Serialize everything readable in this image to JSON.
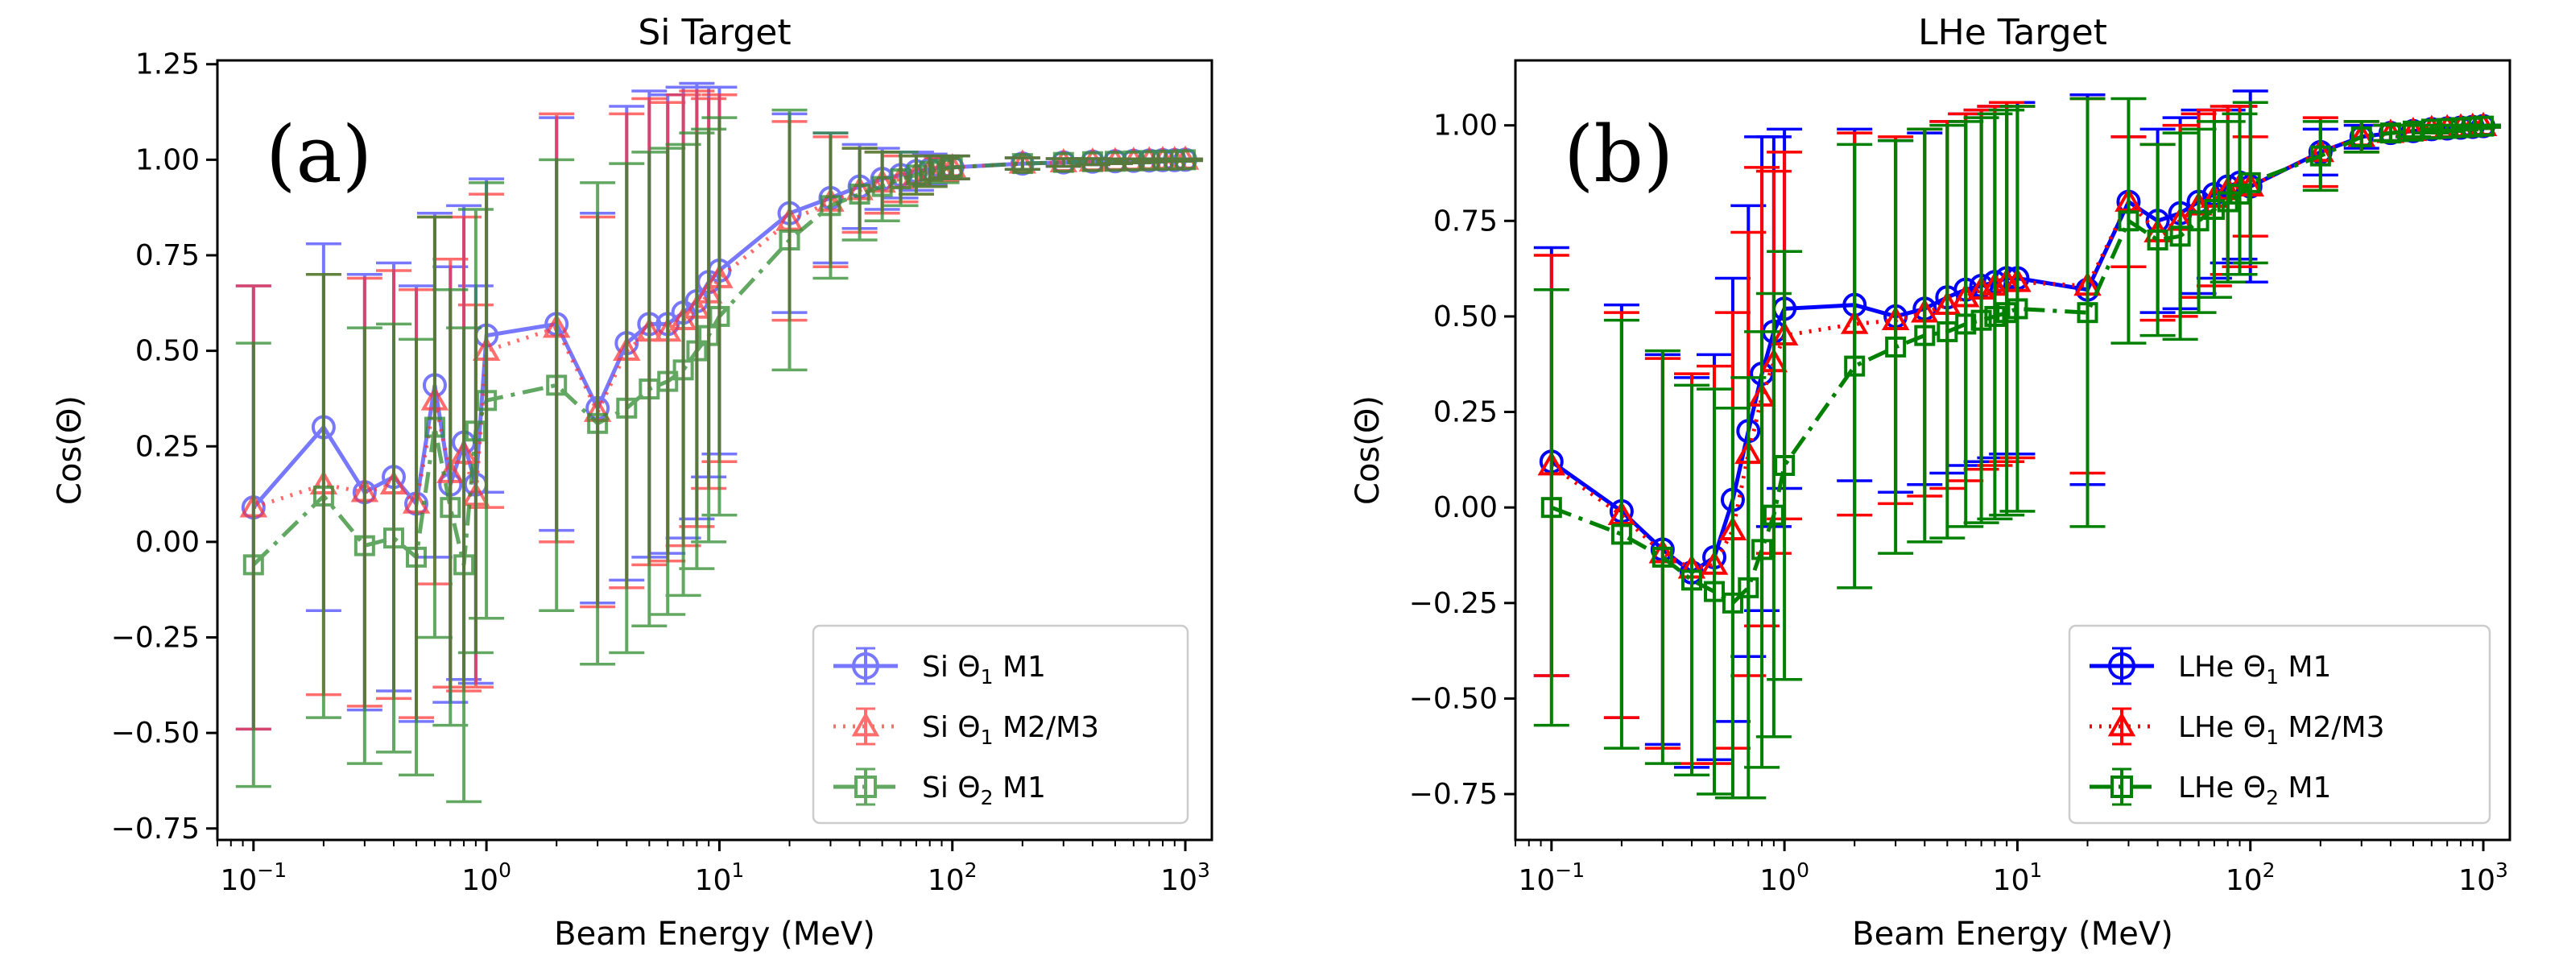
{
  "chart_data": [
    {
      "type": "line",
      "panel_label": "(a)",
      "title": "Si Target",
      "xlabel": "Beam Energy (MeV)",
      "ylabel": "Cos(Θ)",
      "xscale": "log",
      "xlim": [
        0.07,
        1300
      ],
      "ylim": [
        -0.78,
        1.26
      ],
      "xticks": [
        0.1,
        1,
        10,
        100,
        1000
      ],
      "xtick_labels": [
        [
          "10",
          "−1"
        ],
        [
          "10",
          "0"
        ],
        [
          "10",
          "1"
        ],
        [
          "10",
          "2"
        ],
        [
          "10",
          "3"
        ]
      ],
      "yticks": [
        -0.75,
        -0.5,
        -0.25,
        0.0,
        0.25,
        0.5,
        0.75,
        1.0,
        1.25
      ],
      "ytick_labels": [
        "−0.75",
        "−0.50",
        "−0.25",
        "0.00",
        "0.25",
        "0.50",
        "0.75",
        "1.00",
        "1.25"
      ],
      "legend_position": "lower-right",
      "x": [
        0.1,
        0.2,
        0.3,
        0.4,
        0.5,
        0.6,
        0.7,
        0.8,
        0.9,
        1,
        2,
        3,
        4,
        5,
        6,
        7,
        8,
        9,
        10,
        20,
        30,
        40,
        50,
        60,
        70,
        80,
        90,
        100,
        200,
        300,
        400,
        500,
        600,
        700,
        800,
        900,
        1000
      ],
      "series": [
        {
          "name": "Si Θ₁ M1",
          "label_parts": [
            "Si Θ",
            "1",
            " M1"
          ],
          "color": "#4040ff",
          "opacity": 0.7,
          "linestyle": "solid",
          "marker": "circle",
          "y": [
            0.09,
            0.3,
            0.13,
            0.17,
            0.1,
            0.41,
            0.15,
            0.26,
            0.15,
            0.54,
            0.57,
            0.35,
            0.52,
            0.57,
            0.57,
            0.6,
            0.63,
            0.68,
            0.71,
            0.86,
            0.9,
            0.93,
            0.95,
            0.96,
            0.97,
            0.975,
            0.98,
            0.98,
            0.99,
            0.993,
            0.995,
            0.996,
            0.997,
            0.998,
            0.999,
            0.999,
            1.0
          ],
          "err": [
            0.58,
            0.48,
            0.57,
            0.56,
            0.57,
            0.45,
            0.57,
            0.62,
            0.52,
            0.41,
            0.54,
            0.51,
            0.62,
            0.61,
            0.6,
            0.59,
            0.57,
            0.51,
            0.48,
            0.26,
            0.17,
            0.11,
            0.08,
            0.06,
            0.05,
            0.04,
            0.03,
            0.03,
            0.015,
            0.01,
            0.008,
            0.006,
            0.005,
            0.004,
            0.003,
            0.003,
            0.002
          ]
        },
        {
          "name": "Si Θ₁ M2/M3",
          "label_parts": [
            "Si Θ",
            "1",
            " M2/M3"
          ],
          "color": "#ff3030",
          "opacity": 0.7,
          "linestyle": "dotted",
          "marker": "triangle",
          "y": [
            0.09,
            0.15,
            0.13,
            0.15,
            0.1,
            0.37,
            0.18,
            0.23,
            0.12,
            0.5,
            0.56,
            0.34,
            0.5,
            0.55,
            0.55,
            0.58,
            0.61,
            0.65,
            0.69,
            0.84,
            0.89,
            0.92,
            0.94,
            0.95,
            0.96,
            0.97,
            0.975,
            0.98,
            0.99,
            0.993,
            0.995,
            0.996,
            0.997,
            0.998,
            0.999,
            0.999,
            1.0
          ],
          "err": [
            0.58,
            0.55,
            0.56,
            0.56,
            0.56,
            0.48,
            0.56,
            0.62,
            0.5,
            0.41,
            0.56,
            0.51,
            0.62,
            0.61,
            0.6,
            0.59,
            0.57,
            0.51,
            0.48,
            0.26,
            0.17,
            0.11,
            0.08,
            0.06,
            0.05,
            0.04,
            0.03,
            0.03,
            0.015,
            0.01,
            0.008,
            0.006,
            0.005,
            0.004,
            0.003,
            0.003,
            0.002
          ]
        },
        {
          "name": "Si Θ₂ M1",
          "label_parts": [
            "Si Θ",
            "2",
            " M1"
          ],
          "color": "#2e8b2e",
          "opacity": 0.75,
          "linestyle": "dashdot",
          "marker": "square",
          "y": [
            -0.06,
            0.12,
            -0.01,
            0.01,
            -0.04,
            0.3,
            0.09,
            -0.06,
            0.29,
            0.37,
            0.41,
            0.31,
            0.35,
            0.4,
            0.42,
            0.45,
            0.5,
            0.54,
            0.59,
            0.79,
            0.88,
            0.91,
            0.93,
            0.95,
            0.96,
            0.97,
            0.975,
            0.98,
            0.99,
            0.993,
            0.995,
            0.996,
            0.997,
            0.998,
            0.999,
            0.999,
            1.0
          ],
          "err": [
            0.58,
            0.58,
            0.57,
            0.56,
            0.57,
            0.55,
            0.57,
            0.62,
            0.58,
            0.57,
            0.59,
            0.63,
            0.64,
            0.62,
            0.61,
            0.59,
            0.57,
            0.54,
            0.52,
            0.34,
            0.19,
            0.12,
            0.09,
            0.07,
            0.05,
            0.04,
            0.035,
            0.03,
            0.015,
            0.01,
            0.008,
            0.006,
            0.005,
            0.004,
            0.003,
            0.003,
            0.002
          ]
        }
      ]
    },
    {
      "type": "line",
      "panel_label": "(b)",
      "title": "LHe Target",
      "xlabel": "Beam Energy (MeV)",
      "ylabel": "Cos(Θ)",
      "xscale": "log",
      "xlim": [
        0.07,
        1300
      ],
      "ylim": [
        -0.87,
        1.17
      ],
      "xticks": [
        0.1,
        1,
        10,
        100,
        1000
      ],
      "xtick_labels": [
        [
          "10",
          "−1"
        ],
        [
          "10",
          "0"
        ],
        [
          "10",
          "1"
        ],
        [
          "10",
          "2"
        ],
        [
          "10",
          "3"
        ]
      ],
      "yticks": [
        -0.75,
        -0.5,
        -0.25,
        0.0,
        0.25,
        0.5,
        0.75,
        1.0
      ],
      "ytick_labels": [
        "−0.75",
        "−0.50",
        "−0.25",
        "0.00",
        "0.25",
        "0.50",
        "0.75",
        "1.00"
      ],
      "legend_position": "lower-right",
      "x": [
        0.1,
        0.2,
        0.3,
        0.4,
        0.5,
        0.6,
        0.7,
        0.8,
        0.9,
        1,
        2,
        3,
        4,
        5,
        6,
        7,
        8,
        9,
        10,
        20,
        30,
        40,
        50,
        60,
        70,
        80,
        90,
        100,
        200,
        300,
        400,
        500,
        600,
        700,
        800,
        900,
        1000
      ],
      "series": [
        {
          "name": "LHe Θ₁ M1",
          "label_parts": [
            "LHe Θ",
            "1",
            " M1"
          ],
          "color": "#0000ff",
          "opacity": 1,
          "linestyle": "solid",
          "marker": "circle",
          "y": [
            0.12,
            -0.01,
            -0.11,
            -0.17,
            -0.13,
            0.02,
            0.2,
            0.35,
            0.46,
            0.52,
            0.53,
            0.5,
            0.52,
            0.55,
            0.57,
            0.58,
            0.59,
            0.6,
            0.6,
            0.57,
            0.8,
            0.75,
            0.77,
            0.8,
            0.82,
            0.84,
            0.85,
            0.84,
            0.93,
            0.97,
            0.98,
            0.985,
            0.99,
            0.992,
            0.994,
            0.996,
            0.998
          ],
          "err": [
            0.56,
            0.54,
            0.51,
            0.51,
            0.53,
            0.58,
            0.59,
            0.62,
            0.51,
            0.47,
            0.46,
            0.46,
            0.46,
            0.46,
            0.46,
            0.46,
            0.46,
            0.46,
            0.46,
            0.51,
            0.17,
            0.24,
            0.25,
            0.24,
            0.22,
            0.2,
            0.2,
            0.25,
            0.06,
            0.03,
            0.02,
            0.015,
            0.01,
            0.008,
            0.006,
            0.004,
            0.003
          ]
        },
        {
          "name": "LHe Θ₁ M2/M3",
          "label_parts": [
            "LHe Θ",
            "1",
            " M2/M3"
          ],
          "color": "#ff0000",
          "opacity": 1,
          "linestyle": "dotted",
          "marker": "triangle",
          "y": [
            0.11,
            -0.02,
            -0.12,
            -0.16,
            -0.15,
            -0.06,
            0.14,
            0.29,
            0.38,
            0.45,
            0.48,
            0.49,
            0.51,
            0.53,
            0.55,
            0.57,
            0.58,
            0.59,
            0.59,
            0.58,
            0.8,
            0.72,
            0.75,
            0.79,
            0.81,
            0.83,
            0.84,
            0.84,
            0.93,
            0.97,
            0.98,
            0.985,
            0.99,
            0.992,
            0.994,
            0.996,
            0.998
          ],
          "err": [
            0.55,
            0.53,
            0.51,
            0.51,
            0.52,
            0.57,
            0.58,
            0.6,
            0.5,
            0.48,
            0.5,
            0.48,
            0.48,
            0.48,
            0.48,
            0.47,
            0.47,
            0.47,
            0.46,
            0.49,
            0.17,
            0.23,
            0.25,
            0.24,
            0.23,
            0.22,
            0.21,
            0.13,
            0.09,
            0.04,
            0.02,
            0.015,
            0.01,
            0.008,
            0.006,
            0.004,
            0.003
          ]
        },
        {
          "name": "LHe Θ₂ M1",
          "label_parts": [
            "LHe Θ",
            "2",
            " M1"
          ],
          "color": "#008000",
          "opacity": 1,
          "linestyle": "dashdot",
          "marker": "square",
          "y": [
            0.0,
            -0.07,
            -0.13,
            -0.19,
            -0.22,
            -0.25,
            -0.21,
            -0.11,
            -0.02,
            0.11,
            0.37,
            0.42,
            0.45,
            0.46,
            0.48,
            0.49,
            0.5,
            0.51,
            0.52,
            0.51,
            0.75,
            0.7,
            0.71,
            0.75,
            0.78,
            0.8,
            0.82,
            0.85,
            0.92,
            0.97,
            0.98,
            0.985,
            0.99,
            0.992,
            0.994,
            0.996,
            0.998
          ],
          "err": [
            0.57,
            0.56,
            0.54,
            0.51,
            0.53,
            0.51,
            0.55,
            0.57,
            0.58,
            0.56,
            0.58,
            0.54,
            0.54,
            0.54,
            0.53,
            0.53,
            0.53,
            0.53,
            0.53,
            0.56,
            0.32,
            0.25,
            0.27,
            0.24,
            0.23,
            0.21,
            0.21,
            0.21,
            0.09,
            0.04,
            0.02,
            0.015,
            0.01,
            0.008,
            0.006,
            0.004,
            0.003
          ]
        }
      ]
    }
  ]
}
